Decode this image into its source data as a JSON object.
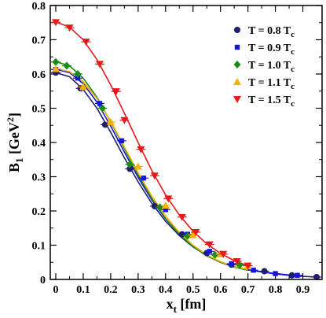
{
  "chart_data": {
    "type": "line",
    "xlabel": {
      "main": "x",
      "sub": "t",
      "unit": " [fm]"
    },
    "ylabel": {
      "main": "B",
      "sub": "1",
      "unit_open": " [GeV",
      "unit_sup": "2",
      "unit_close": "]"
    },
    "xlim": [
      -0.02,
      0.97
    ],
    "ylim": [
      0,
      0.8
    ],
    "xticks": [
      "0",
      "0.1",
      "0.2",
      "0.3",
      "0.4",
      "0.5",
      "0.6",
      "0.7",
      "0.8",
      "0.9"
    ],
    "yticks": [
      "0",
      "0.1",
      "0.2",
      "0.3",
      "0.4",
      "0.5",
      "0.6",
      "0.7",
      "0.8"
    ],
    "legend_position": "top-right",
    "series": [
      {
        "name": "T = 0.8 T",
        "name_sub": "c",
        "marker": "circle",
        "color": "#1f1f6e",
        "points": [
          [
            0.0,
            0.604
          ],
          [
            0.09,
            0.558
          ],
          [
            0.18,
            0.452
          ],
          [
            0.27,
            0.323
          ],
          [
            0.36,
            0.214
          ],
          [
            0.46,
            0.132
          ],
          [
            0.55,
            0.077
          ],
          [
            0.64,
            0.043
          ],
          [
            0.76,
            0.024
          ],
          [
            0.86,
            0.012
          ],
          [
            0.95,
            0.007
          ]
        ],
        "curve": [
          [
            0.0,
            0.604
          ],
          [
            0.05,
            0.592
          ],
          [
            0.1,
            0.555
          ],
          [
            0.15,
            0.5
          ],
          [
            0.2,
            0.43
          ],
          [
            0.25,
            0.355
          ],
          [
            0.3,
            0.285
          ],
          [
            0.35,
            0.222
          ],
          [
            0.4,
            0.17
          ],
          [
            0.45,
            0.128
          ],
          [
            0.5,
            0.095
          ],
          [
            0.55,
            0.07
          ],
          [
            0.6,
            0.05
          ],
          [
            0.65,
            0.037
          ],
          [
            0.7,
            0.028
          ],
          [
            0.75,
            0.022
          ],
          [
            0.8,
            0.016
          ],
          [
            0.85,
            0.012
          ],
          [
            0.9,
            0.009
          ],
          [
            0.95,
            0.007
          ]
        ]
      },
      {
        "name": "T = 0.9 T",
        "name_sub": "c",
        "marker": "square",
        "color": "#1515d8",
        "points": [
          [
            0.0,
            0.613
          ],
          [
            0.08,
            0.588
          ],
          [
            0.16,
            0.514
          ],
          [
            0.24,
            0.405
          ],
          [
            0.32,
            0.296
          ],
          [
            0.4,
            0.204
          ],
          [
            0.48,
            0.132
          ],
          [
            0.56,
            0.082
          ],
          [
            0.64,
            0.046
          ],
          [
            0.72,
            0.027
          ],
          [
            0.8,
            0.017
          ],
          [
            0.88,
            0.012
          ]
        ],
        "curve": [
          [
            0.0,
            0.614
          ],
          [
            0.05,
            0.604
          ],
          [
            0.1,
            0.572
          ],
          [
            0.15,
            0.518
          ],
          [
            0.2,
            0.448
          ],
          [
            0.25,
            0.372
          ],
          [
            0.3,
            0.298
          ],
          [
            0.35,
            0.232
          ],
          [
            0.4,
            0.177
          ],
          [
            0.45,
            0.133
          ],
          [
            0.5,
            0.098
          ],
          [
            0.55,
            0.071
          ],
          [
            0.6,
            0.051
          ],
          [
            0.65,
            0.037
          ],
          [
            0.7,
            0.028
          ],
          [
            0.75,
            0.022
          ],
          [
            0.8,
            0.017
          ],
          [
            0.85,
            0.013
          ],
          [
            0.9,
            0.011
          ]
        ]
      },
      {
        "name": "T = 1.0 T",
        "name_sub": "c",
        "marker": "diamond",
        "color": "#1a8a1a",
        "points": [
          [
            0.0,
            0.635
          ],
          [
            0.04,
            0.624
          ],
          [
            0.08,
            0.6
          ],
          [
            0.17,
            0.5
          ],
          [
            0.27,
            0.336
          ],
          [
            0.38,
            0.211
          ],
          [
            0.48,
            0.127
          ],
          [
            0.58,
            0.072
          ],
          [
            0.67,
            0.042
          ]
        ],
        "curve": [
          [
            0.0,
            0.636
          ],
          [
            0.05,
            0.624
          ],
          [
            0.1,
            0.588
          ],
          [
            0.15,
            0.532
          ],
          [
            0.2,
            0.46
          ],
          [
            0.25,
            0.382
          ],
          [
            0.3,
            0.305
          ],
          [
            0.35,
            0.236
          ],
          [
            0.4,
            0.178
          ],
          [
            0.45,
            0.132
          ],
          [
            0.5,
            0.096
          ],
          [
            0.55,
            0.069
          ],
          [
            0.6,
            0.05
          ],
          [
            0.65,
            0.036
          ],
          [
            0.7,
            0.027
          ]
        ]
      },
      {
        "name": "T = 1.1 T",
        "name_sub": "c",
        "marker": "triangle-up",
        "color": "#f5b000",
        "points": [
          [
            0.0,
            0.615
          ],
          [
            0.1,
            0.562
          ],
          [
            0.2,
            0.46
          ],
          [
            0.3,
            0.33
          ],
          [
            0.4,
            0.216
          ],
          [
            0.5,
            0.13
          ],
          [
            0.6,
            0.074
          ],
          [
            0.7,
            0.04
          ]
        ],
        "curve": [
          [
            0.0,
            0.616
          ],
          [
            0.05,
            0.607
          ],
          [
            0.1,
            0.578
          ],
          [
            0.15,
            0.528
          ],
          [
            0.2,
            0.462
          ],
          [
            0.25,
            0.387
          ],
          [
            0.3,
            0.312
          ],
          [
            0.35,
            0.243
          ],
          [
            0.4,
            0.185
          ],
          [
            0.45,
            0.137
          ],
          [
            0.5,
            0.1
          ],
          [
            0.55,
            0.072
          ],
          [
            0.6,
            0.052
          ],
          [
            0.65,
            0.038
          ],
          [
            0.7,
            0.029
          ]
        ]
      },
      {
        "name": "T = 1.5 T",
        "name_sub": "c",
        "marker": "triangle-down",
        "color": "#e8191c",
        "points": [
          [
            0.0,
            0.751
          ],
          [
            0.05,
            0.735
          ],
          [
            0.11,
            0.694
          ],
          [
            0.16,
            0.629
          ],
          [
            0.22,
            0.549
          ],
          [
            0.25,
            0.465
          ],
          [
            0.31,
            0.38
          ],
          [
            0.36,
            0.303
          ],
          [
            0.41,
            0.236
          ],
          [
            0.46,
            0.182
          ],
          [
            0.51,
            0.138
          ],
          [
            0.56,
            0.102
          ],
          [
            0.61,
            0.074
          ],
          [
            0.66,
            0.053
          ],
          [
            0.7,
            0.04
          ]
        ],
        "curve": [
          [
            0.0,
            0.752
          ],
          [
            0.05,
            0.737
          ],
          [
            0.1,
            0.7
          ],
          [
            0.15,
            0.642
          ],
          [
            0.2,
            0.568
          ],
          [
            0.25,
            0.485
          ],
          [
            0.3,
            0.4
          ],
          [
            0.35,
            0.318
          ],
          [
            0.4,
            0.247
          ],
          [
            0.45,
            0.188
          ],
          [
            0.5,
            0.141
          ],
          [
            0.55,
            0.104
          ],
          [
            0.6,
            0.076
          ],
          [
            0.65,
            0.055
          ],
          [
            0.7,
            0.04
          ]
        ]
      }
    ]
  }
}
